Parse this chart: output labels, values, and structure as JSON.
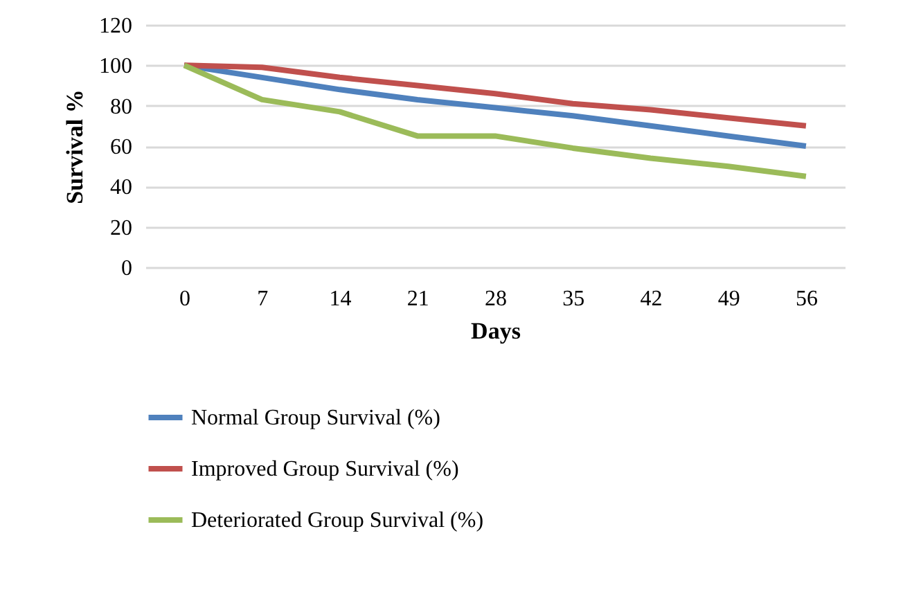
{
  "chart_data": {
    "type": "line",
    "xlabel": "Days",
    "ylabel": "Survival %",
    "categories": [
      "0",
      "7",
      "14",
      "21",
      "28",
      "35",
      "42",
      "49",
      "56"
    ],
    "series": [
      {
        "name": "Normal Group Survival (%)",
        "color": "#4f81bd",
        "values": [
          100,
          94,
          88,
          83,
          79,
          75,
          70,
          65,
          60
        ]
      },
      {
        "name": "Improved Group Survival (%)",
        "color": "#c0504d",
        "values": [
          100,
          99,
          94,
          90,
          86,
          81,
          78,
          74,
          70
        ]
      },
      {
        "name": "Deteriorated Group Survival (%)",
        "color": "#9bbb59",
        "values": [
          100,
          83,
          77,
          65,
          65,
          59,
          54,
          50,
          45
        ]
      }
    ],
    "ylim": [
      0,
      120
    ],
    "yticks": [
      0,
      20,
      40,
      60,
      80,
      100,
      120
    ],
    "grid": "y",
    "legend": "bottom",
    "marker": "none",
    "line_style": "solid"
  }
}
